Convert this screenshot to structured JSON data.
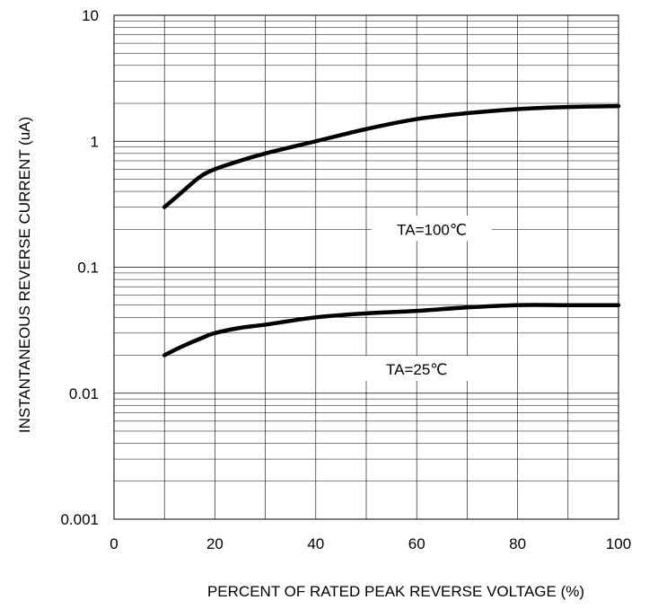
{
  "chart_data": {
    "type": "line",
    "title": "",
    "xlabel": "PERCENT OF RATED PEAK REVERSE VOLTAGE (%)",
    "ylabel": "INSTANTANEOUS REVERSE CURRENT (uA)",
    "xlim": [
      0,
      100
    ],
    "ylim": [
      0.001,
      10
    ],
    "y_scale": "log",
    "grid": true,
    "x_ticks": [
      0,
      20,
      40,
      60,
      80,
      100
    ],
    "x_tick_labels": [
      "0",
      "20",
      "40",
      "60",
      "80",
      "100"
    ],
    "y_ticks": [
      0.001,
      0.01,
      0.1,
      1,
      10
    ],
    "y_tick_labels": [
      "0.001",
      "0.01",
      "0.1",
      "1",
      "10"
    ],
    "series": [
      {
        "name": "TA=100℃",
        "color": "#000000",
        "x": [
          10,
          13,
          17,
          20,
          25,
          30,
          40,
          50,
          60,
          70,
          80,
          90,
          100
        ],
        "y": [
          0.3,
          0.38,
          0.52,
          0.6,
          0.7,
          0.8,
          1.0,
          1.25,
          1.5,
          1.67,
          1.8,
          1.87,
          1.9
        ]
      },
      {
        "name": "TA=25℃",
        "color": "#000000",
        "x": [
          10,
          13,
          17,
          20,
          25,
          30,
          40,
          50,
          60,
          70,
          80,
          90,
          100
        ],
        "y": [
          0.02,
          0.023,
          0.027,
          0.03,
          0.033,
          0.035,
          0.04,
          0.043,
          0.045,
          0.048,
          0.05,
          0.05,
          0.05
        ]
      }
    ]
  }
}
